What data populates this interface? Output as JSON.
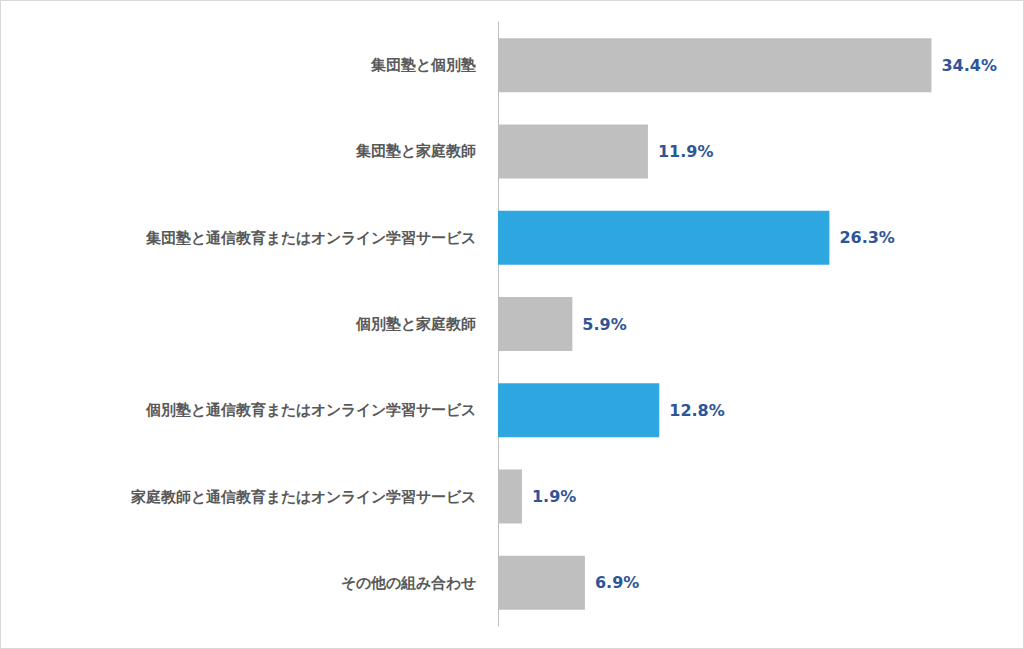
{
  "chart_data": {
    "type": "bar",
    "orientation": "horizontal",
    "categories": [
      "集団塾と個別塾",
      "集団塾と家庭教師",
      "集団塾と通信教育またはオンライン学習サービス",
      "個別塾と家庭教師",
      "個別塾と通信教育またはオンライン学習サービス",
      "家庭教師と通信教育またはオンライン学習サービス",
      "その他の組み合わせ"
    ],
    "values": [
      34.4,
      11.9,
      26.3,
      5.9,
      12.8,
      1.9,
      6.9
    ],
    "value_labels": [
      "34.4%",
      "11.9%",
      "26.3%",
      "5.9%",
      "12.8%",
      "1.9%",
      "6.9%"
    ],
    "colors": [
      "#bfbfbf",
      "#bfbfbf",
      "#2ea7e0",
      "#bfbfbf",
      "#2ea7e0",
      "#bfbfbf",
      "#bfbfbf"
    ],
    "xlim": [
      0,
      40
    ],
    "data_labels": true,
    "tick_labels": "y",
    "grid": false
  }
}
